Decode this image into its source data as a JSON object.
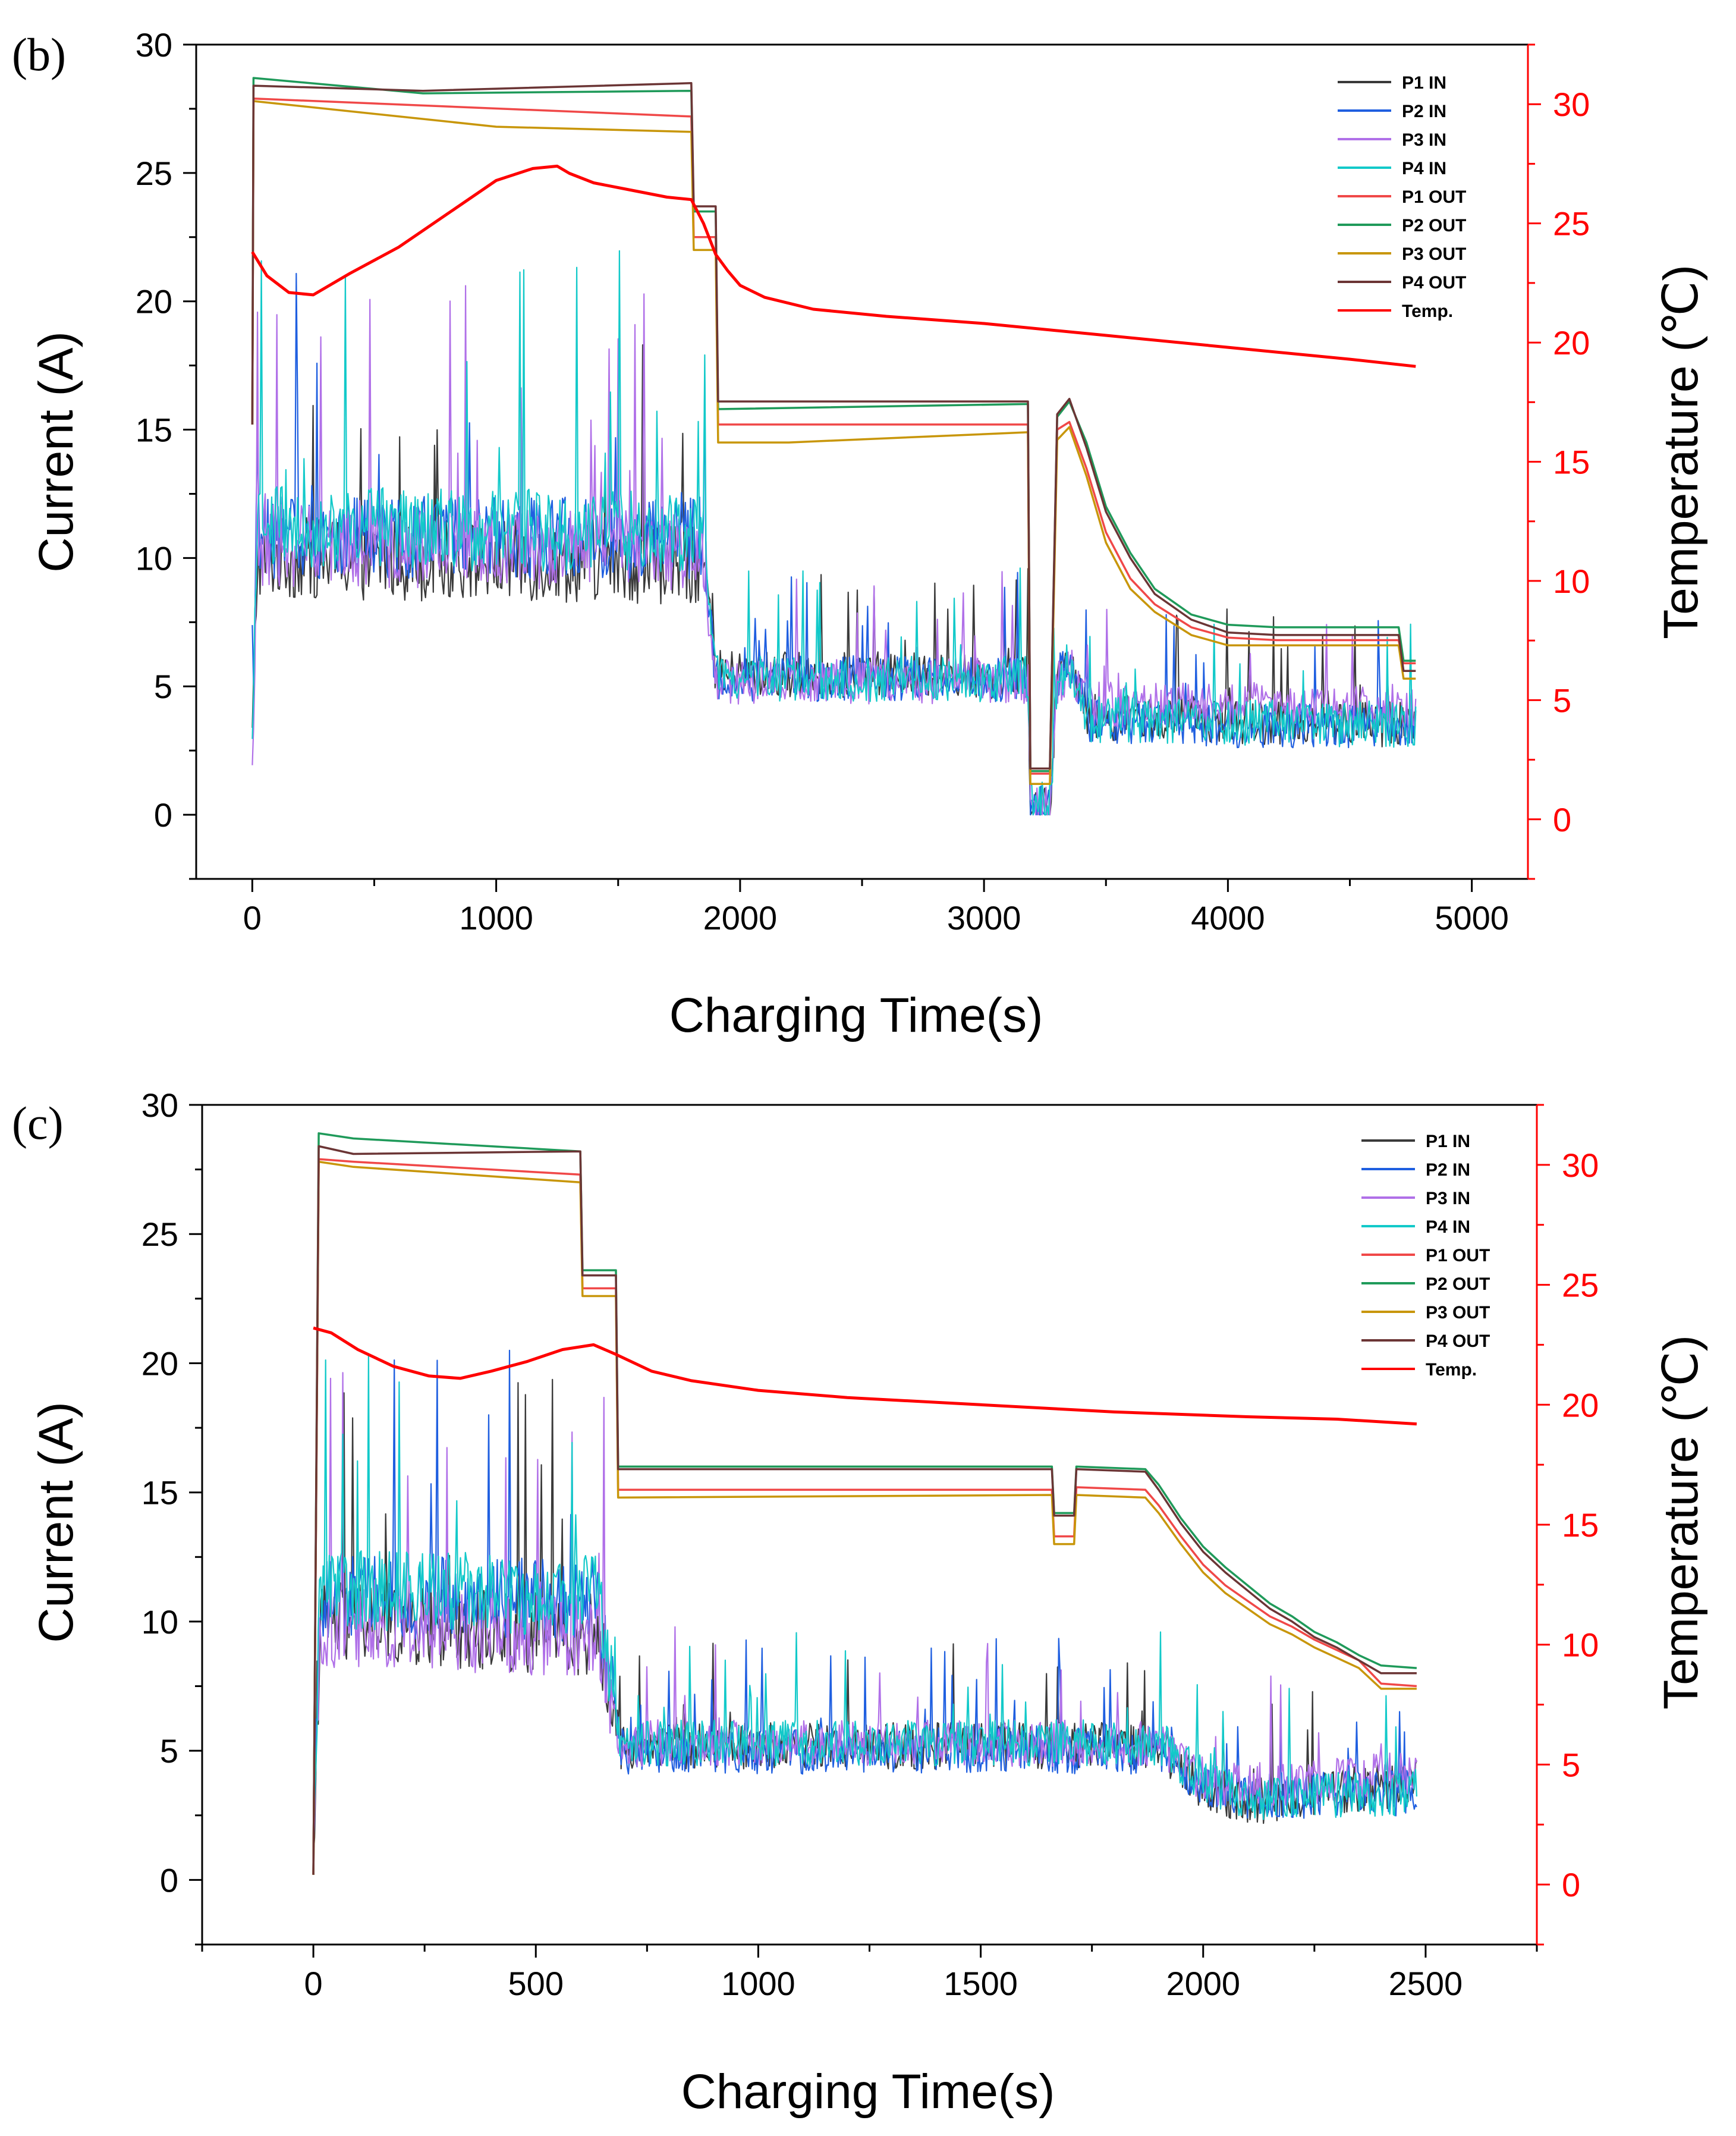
{
  "colors": {
    "P1 IN": "#3a3a3a",
    "P2 IN": "#1f5fe0",
    "P3 IN": "#b070e8",
    "P4 IN": "#12c9c9",
    "P1 OUT": "#f04848",
    "P2 OUT": "#1f9a5a",
    "P3 OUT": "#c8960a",
    "P4 OUT": "#6b3535",
    "Temp.": "#ff0000",
    "right_axis": "#ff0000"
  },
  "chart_data": [
    {
      "type": "line",
      "panel_label": "(b)",
      "xlabel": "Charging Time(s)",
      "ylabel": "Current (A)",
      "y2label": "Temperature (℃)",
      "xlim": [
        -230,
        5230
      ],
      "ylim": [
        -2.5,
        30
      ],
      "y2lim": [
        -2.5,
        32.5
      ],
      "xticks": [
        0,
        1000,
        2000,
        3000,
        4000,
        5000
      ],
      "yticks": [
        0,
        5,
        10,
        15,
        20,
        25,
        30
      ],
      "y2ticks": [
        0,
        5,
        10,
        15,
        20,
        25,
        30
      ],
      "legend": [
        "P1 IN",
        "P2 IN",
        "P3 IN",
        "P4 IN",
        "P1 OUT",
        "P2 OUT",
        "P3 OUT",
        "P4 OUT",
        "Temp."
      ],
      "legend_position": "top-right",
      "series": [
        {
          "name": "P1 OUT",
          "axis": "left",
          "x": [
            0,
            5,
            1800,
            1810,
            1900,
            1910,
            3180,
            3190,
            3270,
            3300,
            3350,
            3420,
            3500,
            3600,
            3700,
            3850,
            4000,
            4200,
            4700,
            4720,
            4770
          ],
          "y": [
            15.2,
            27.9,
            27.2,
            22.5,
            22.5,
            15.2,
            15.2,
            1.6,
            1.6,
            15.0,
            15.3,
            13.5,
            11.0,
            9.2,
            8.2,
            7.3,
            6.9,
            6.8,
            6.8,
            5.9,
            5.9
          ]
        },
        {
          "name": "P2 OUT",
          "axis": "left",
          "x": [
            0,
            5,
            700,
            1800,
            1810,
            1900,
            1910,
            3180,
            3190,
            3270,
            3300,
            3350,
            3420,
            3500,
            3600,
            3700,
            3850,
            4000,
            4200,
            4700,
            4720,
            4770
          ],
          "y": [
            15.2,
            28.7,
            28.1,
            28.2,
            23.5,
            23.5,
            15.8,
            16.0,
            1.7,
            1.7,
            15.5,
            16.1,
            14.5,
            12.0,
            10.2,
            8.8,
            7.8,
            7.4,
            7.3,
            7.3,
            6.0,
            6.0
          ]
        },
        {
          "name": "P3 OUT",
          "axis": "left",
          "x": [
            0,
            5,
            1000,
            1800,
            1810,
            1900,
            1910,
            2200,
            3180,
            3190,
            3270,
            3300,
            3350,
            3420,
            3500,
            3600,
            3700,
            3850,
            4000,
            4200,
            4700,
            4720,
            4770
          ],
          "y": [
            15.2,
            27.8,
            26.8,
            26.6,
            22.0,
            22.0,
            14.5,
            14.5,
            14.9,
            1.2,
            1.2,
            14.6,
            15.1,
            13.2,
            10.6,
            8.8,
            7.9,
            7.0,
            6.6,
            6.6,
            6.6,
            5.3,
            5.3
          ]
        },
        {
          "name": "P4 OUT",
          "axis": "left",
          "x": [
            0,
            5,
            700,
            1800,
            1810,
            1900,
            1910,
            3180,
            3190,
            3270,
            3300,
            3350,
            3420,
            3500,
            3600,
            3700,
            3850,
            4000,
            4200,
            4700,
            4720,
            4770
          ],
          "y": [
            15.2,
            28.4,
            28.2,
            28.5,
            23.7,
            23.7,
            16.1,
            16.1,
            1.8,
            1.8,
            15.6,
            16.2,
            14.3,
            11.8,
            10.0,
            8.6,
            7.6,
            7.1,
            7.0,
            7.0,
            5.6,
            5.6
          ]
        },
        {
          "name": "Temp.",
          "axis": "right",
          "x": [
            0,
            60,
            150,
            250,
            400,
            600,
            800,
            1000,
            1150,
            1250,
            1300,
            1400,
            1550,
            1700,
            1800,
            1850,
            1900,
            1950,
            2000,
            2100,
            2300,
            2600,
            3000,
            3500,
            4000,
            4500,
            4770
          ],
          "y": [
            23.8,
            22.8,
            22.1,
            22.0,
            22.9,
            24.0,
            25.4,
            26.8,
            27.3,
            27.4,
            27.1,
            26.7,
            26.4,
            26.1,
            26.0,
            25.0,
            23.7,
            23.0,
            22.4,
            21.9,
            21.4,
            21.1,
            20.8,
            20.3,
            19.8,
            19.3,
            19.0
          ]
        },
        {
          "name": "P1 IN",
          "axis": "left",
          "noise": true,
          "x": [
            0,
            20,
            1850,
            1900,
            3180,
            3190,
            3270,
            3300,
            3360,
            3430,
            4770
          ],
          "y": [
            3.0,
            10.0,
            9.8,
            5.5,
            5.4,
            0.3,
            0.3,
            5.5,
            6.0,
            3.8,
            3.5
          ]
        },
        {
          "name": "P2 IN",
          "axis": "left",
          "noise": true,
          "x": [
            0,
            20,
            1850,
            1900,
            3180,
            3190,
            3270,
            3300,
            3360,
            3430,
            4770
          ],
          "y": [
            3.0,
            10.8,
            10.8,
            5.3,
            5.3,
            0.3,
            0.3,
            5.3,
            5.8,
            3.6,
            3.4
          ]
        },
        {
          "name": "P3 IN",
          "axis": "left",
          "noise": true,
          "x": [
            0,
            20,
            1850,
            1900,
            3180,
            3190,
            3270,
            3300,
            3360,
            3430,
            4770
          ],
          "y": [
            1.5,
            10.5,
            10.3,
            5.2,
            5.2,
            0.2,
            0.2,
            5.2,
            5.6,
            4.3,
            4.2
          ]
        },
        {
          "name": "P4 IN",
          "axis": "left",
          "noise": true,
          "x": [
            0,
            20,
            1850,
            1900,
            3180,
            3190,
            3270,
            3300,
            3360,
            3430,
            4770
          ],
          "y": [
            2.5,
            11.2,
            11.0,
            5.3,
            5.3,
            0.4,
            0.4,
            5.3,
            5.5,
            3.7,
            3.5
          ]
        }
      ]
    },
    {
      "type": "line",
      "panel_label": "(c)",
      "xlabel": "Charging Time(s)",
      "ylabel": "Current (A)",
      "y2label": "Temperature (℃)",
      "xlim": [
        -250,
        2750
      ],
      "ylim": [
        -2.5,
        30
      ],
      "y2lim": [
        -2.5,
        32.5
      ],
      "xticks": [
        0,
        500,
        1000,
        1500,
        2000,
        2500
      ],
      "yticks": [
        0,
        5,
        10,
        15,
        20,
        25,
        30
      ],
      "y2ticks": [
        0,
        5,
        10,
        15,
        20,
        25,
        30
      ],
      "legend": [
        "P1 IN",
        "P2 IN",
        "P3 IN",
        "P4 IN",
        "P1 OUT",
        "P2 OUT",
        "P3 OUT",
        "P4 OUT",
        "Temp."
      ],
      "legend_position": "top-right",
      "series": [
        {
          "name": "P1 OUT",
          "axis": "left",
          "x": [
            0,
            12,
            90,
            600,
            605,
            680,
            685,
            1660,
            1665,
            1710,
            1715,
            1870,
            1900,
            1950,
            2000,
            2050,
            2100,
            2150,
            2200,
            2250,
            2300,
            2350,
            2400,
            2480
          ],
          "y": [
            0.2,
            27.9,
            27.8,
            27.3,
            22.9,
            22.9,
            15.1,
            15.1,
            13.3,
            13.3,
            15.2,
            15.1,
            14.5,
            13.3,
            12.2,
            11.4,
            10.8,
            10.2,
            9.8,
            9.3,
            8.9,
            8.5,
            7.6,
            7.5
          ]
        },
        {
          "name": "P2 OUT",
          "axis": "left",
          "x": [
            0,
            12,
            90,
            600,
            605,
            680,
            685,
            1660,
            1665,
            1710,
            1715,
            1870,
            1900,
            1950,
            2000,
            2050,
            2100,
            2150,
            2200,
            2250,
            2300,
            2350,
            2400,
            2480
          ],
          "y": [
            0.2,
            28.9,
            28.7,
            28.2,
            23.6,
            23.6,
            16.0,
            16.0,
            14.2,
            14.2,
            16.0,
            15.9,
            15.3,
            14.0,
            12.9,
            12.1,
            11.4,
            10.7,
            10.2,
            9.6,
            9.2,
            8.7,
            8.3,
            8.2
          ]
        },
        {
          "name": "P3 OUT",
          "axis": "left",
          "x": [
            0,
            12,
            90,
            600,
            605,
            680,
            685,
            1660,
            1665,
            1710,
            1715,
            1870,
            1900,
            1950,
            2000,
            2050,
            2100,
            2150,
            2200,
            2250,
            2300,
            2350,
            2400,
            2480
          ],
          "y": [
            0.2,
            27.8,
            27.6,
            27.0,
            22.6,
            22.6,
            14.8,
            14.9,
            13.0,
            13.0,
            14.9,
            14.8,
            14.2,
            13.0,
            11.9,
            11.1,
            10.5,
            9.9,
            9.5,
            9.0,
            8.6,
            8.2,
            7.4,
            7.4
          ]
        },
        {
          "name": "P4 OUT",
          "axis": "left",
          "x": [
            0,
            12,
            90,
            600,
            605,
            680,
            685,
            1660,
            1665,
            1710,
            1715,
            1870,
            1900,
            1950,
            2000,
            2050,
            2100,
            2150,
            2200,
            2250,
            2300,
            2350,
            2400,
            2480
          ],
          "y": [
            0.2,
            28.4,
            28.1,
            28.2,
            23.4,
            23.4,
            15.9,
            15.9,
            14.1,
            14.1,
            15.9,
            15.8,
            15.1,
            13.8,
            12.7,
            11.9,
            11.2,
            10.5,
            10.0,
            9.4,
            9.0,
            8.5,
            8.0,
            8.0
          ]
        },
        {
          "name": "Temp.",
          "axis": "right",
          "x": [
            0,
            40,
            100,
            180,
            260,
            330,
            400,
            480,
            560,
            630,
            680,
            760,
            850,
            1000,
            1200,
            1500,
            1800,
            2100,
            2300,
            2480
          ],
          "y": [
            23.2,
            23.0,
            22.3,
            21.6,
            21.2,
            21.1,
            21.4,
            21.8,
            22.3,
            22.5,
            22.1,
            21.4,
            21.0,
            20.6,
            20.3,
            20.0,
            19.7,
            19.5,
            19.4,
            19.2
          ]
        },
        {
          "name": "P1 IN",
          "axis": "left",
          "noise": true,
          "x": [
            0,
            15,
            640,
            690,
            1900,
            2000,
            2100,
            2480
          ],
          "y": [
            0.5,
            10.0,
            9.5,
            5.2,
            5.2,
            3.6,
            3.0,
            3.8
          ]
        },
        {
          "name": "P2 IN",
          "axis": "left",
          "noise": true,
          "x": [
            0,
            15,
            640,
            690,
            1900,
            2000,
            2100,
            2480
          ],
          "y": [
            0.5,
            11.0,
            10.8,
            5.0,
            5.0,
            3.8,
            3.2,
            3.4
          ]
        },
        {
          "name": "P3 IN",
          "axis": "left",
          "noise": true,
          "x": [
            0,
            15,
            640,
            690,
            1900,
            2000,
            2100,
            2480
          ],
          "y": [
            0.5,
            9.8,
            9.4,
            5.3,
            5.3,
            3.9,
            3.6,
            4.2
          ]
        },
        {
          "name": "P4 IN",
          "axis": "left",
          "noise": true,
          "x": [
            0,
            15,
            640,
            690,
            1900,
            2000,
            2100,
            2480
          ],
          "y": [
            0.5,
            11.2,
            11.0,
            5.3,
            5.3,
            3.9,
            3.2,
            3.4
          ]
        }
      ]
    }
  ]
}
